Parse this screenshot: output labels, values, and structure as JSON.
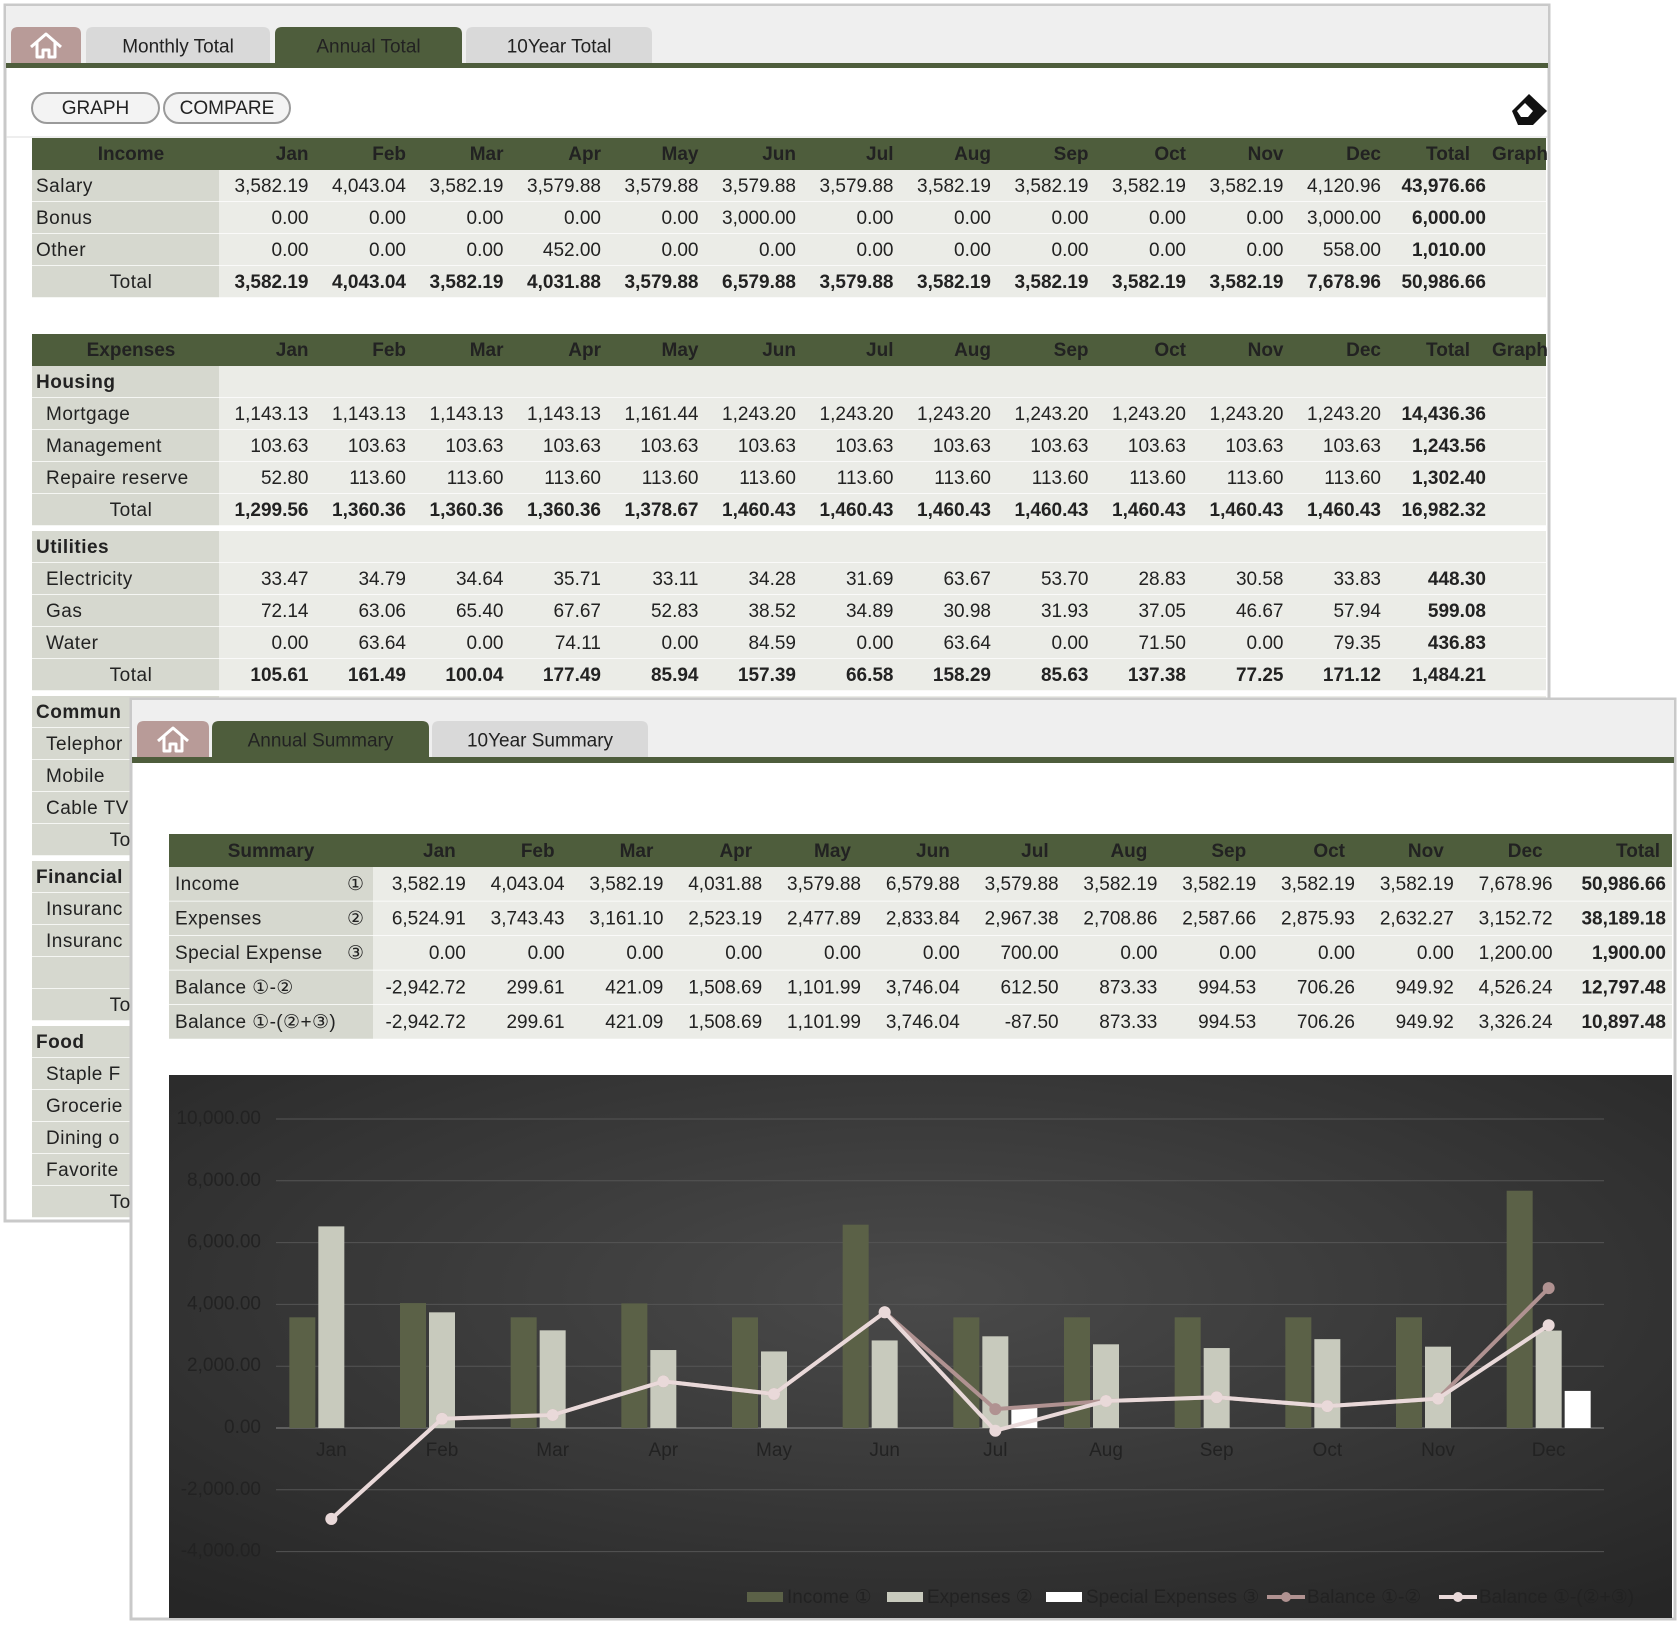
{
  "back_window": {
    "tabs": [
      "Monthly Total",
      "Annual Total",
      "10Year Total"
    ],
    "active_tab": 1,
    "buttons": [
      "GRAPH",
      "COMPARE"
    ],
    "income_table": {
      "columns": [
        "Income",
        "Jan",
        "Feb",
        "Mar",
        "Apr",
        "May",
        "Jun",
        "Jul",
        "Aug",
        "Sep",
        "Oct",
        "Nov",
        "Dec",
        "Total",
        "Graph"
      ],
      "rows": [
        [
          "Salary",
          "3,582.19",
          "4,043.04",
          "3,582.19",
          "3,579.88",
          "3,579.88",
          "3,579.88",
          "3,579.88",
          "3,582.19",
          "3,582.19",
          "3,582.19",
          "3,582.19",
          "4,120.96",
          "43,976.66"
        ],
        [
          "Bonus",
          "0.00",
          "0.00",
          "0.00",
          "0.00",
          "0.00",
          "3,000.00",
          "0.00",
          "0.00",
          "0.00",
          "0.00",
          "0.00",
          "3,000.00",
          "6,000.00"
        ],
        [
          "Other",
          "0.00",
          "0.00",
          "0.00",
          "452.00",
          "0.00",
          "0.00",
          "0.00",
          "0.00",
          "0.00",
          "0.00",
          "0.00",
          "558.00",
          "1,010.00"
        ]
      ],
      "total": [
        "Total",
        "3,582.19",
        "4,043.04",
        "3,582.19",
        "4,031.88",
        "3,579.88",
        "6,579.88",
        "3,579.88",
        "3,582.19",
        "3,582.19",
        "3,582.19",
        "3,582.19",
        "7,678.96",
        "50,986.66"
      ]
    },
    "expenses_table": {
      "columns": [
        "Expenses",
        "Jan",
        "Feb",
        "Mar",
        "Apr",
        "May",
        "Jun",
        "Jul",
        "Aug",
        "Sep",
        "Oct",
        "Nov",
        "Dec",
        "Total",
        "Graph"
      ],
      "sections": [
        {
          "name": "Housing",
          "rows": [
            [
              "Mortgage",
              "1,143.13",
              "1,143.13",
              "1,143.13",
              "1,143.13",
              "1,161.44",
              "1,243.20",
              "1,243.20",
              "1,243.20",
              "1,243.20",
              "1,243.20",
              "1,243.20",
              "1,243.20",
              "14,436.36"
            ],
            [
              "Management",
              "103.63",
              "103.63",
              "103.63",
              "103.63",
              "103.63",
              "103.63",
              "103.63",
              "103.63",
              "103.63",
              "103.63",
              "103.63",
              "103.63",
              "1,243.56"
            ],
            [
              "Repaire reserve",
              "52.80",
              "113.60",
              "113.60",
              "113.60",
              "113.60",
              "113.60",
              "113.60",
              "113.60",
              "113.60",
              "113.60",
              "113.60",
              "113.60",
              "1,302.40"
            ]
          ],
          "total": [
            "Total",
            "1,299.56",
            "1,360.36",
            "1,360.36",
            "1,360.36",
            "1,378.67",
            "1,460.43",
            "1,460.43",
            "1,460.43",
            "1,460.43",
            "1,460.43",
            "1,460.43",
            "1,460.43",
            "16,982.32"
          ]
        },
        {
          "name": "Utilities",
          "rows": [
            [
              "Electricity",
              "33.47",
              "34.79",
              "34.64",
              "35.71",
              "33.11",
              "34.28",
              "31.69",
              "63.67",
              "53.70",
              "28.83",
              "30.58",
              "33.83",
              "448.30"
            ],
            [
              "Gas",
              "72.14",
              "63.06",
              "65.40",
              "67.67",
              "52.83",
              "38.52",
              "34.89",
              "30.98",
              "31.93",
              "37.05",
              "46.67",
              "57.94",
              "599.08"
            ],
            [
              "Water",
              "0.00",
              "63.64",
              "0.00",
              "74.11",
              "0.00",
              "84.59",
              "0.00",
              "63.64",
              "0.00",
              "71.50",
              "0.00",
              "79.35",
              "436.83"
            ]
          ],
          "total": [
            "Total",
            "105.61",
            "161.49",
            "100.04",
            "177.49",
            "85.94",
            "157.39",
            "66.58",
            "158.29",
            "85.63",
            "137.38",
            "77.25",
            "171.12",
            "1,484.21"
          ]
        },
        {
          "name": "Commun",
          "rows": [
            [
              "Telephor"
            ],
            [
              "Mobile"
            ],
            [
              "Cable TV"
            ]
          ],
          "total": [
            "Total"
          ]
        },
        {
          "name": "Financial",
          "rows": [
            [
              "Insuranc"
            ],
            [
              "Insuranc"
            ],
            [
              null
            ]
          ],
          "total": [
            "Total"
          ]
        },
        {
          "name": "Food",
          "rows": [
            [
              "Staple F"
            ],
            [
              "Grocerie"
            ],
            [
              "Dining o"
            ],
            [
              "Favorite"
            ]
          ],
          "total": [
            "Total"
          ]
        }
      ]
    }
  },
  "front_window": {
    "tabs": [
      "Annual Summary",
      "10Year Summary"
    ],
    "active_tab": 0,
    "summary_table": {
      "columns": [
        "Summary",
        "Jan",
        "Feb",
        "Mar",
        "Apr",
        "May",
        "Jun",
        "Jul",
        "Aug",
        "Sep",
        "Oct",
        "Nov",
        "Dec",
        "Total"
      ],
      "rows": [
        {
          "label": "Income",
          "marker": "①",
          "values": [
            "3,582.19",
            "4,043.04",
            "3,582.19",
            "4,031.88",
            "3,579.88",
            "6,579.88",
            "3,579.88",
            "3,582.19",
            "3,582.19",
            "3,582.19",
            "3,582.19",
            "7,678.96",
            "50,986.66"
          ]
        },
        {
          "label": "Expenses",
          "marker": "②",
          "values": [
            "6,524.91",
            "3,743.43",
            "3,161.10",
            "2,523.19",
            "2,477.89",
            "2,833.84",
            "2,967.38",
            "2,708.86",
            "2,587.66",
            "2,875.93",
            "2,632.27",
            "3,152.72",
            "38,189.18"
          ]
        },
        {
          "label": "Special Expense",
          "marker": "③",
          "values": [
            "0.00",
            "0.00",
            "0.00",
            "0.00",
            "0.00",
            "0.00",
            "700.00",
            "0.00",
            "0.00",
            "0.00",
            "0.00",
            "1,200.00",
            "1,900.00"
          ]
        },
        {
          "label": "Balance ①-②",
          "values": [
            "-2,942.72",
            "299.61",
            "421.09",
            "1,508.69",
            "1,101.99",
            "3,746.04",
            "612.50",
            "873.33",
            "994.53",
            "706.26",
            "949.92",
            "4,526.24",
            "12,797.48"
          ]
        },
        {
          "label": "Balance ①-(②+③)",
          "values": [
            "-2,942.72",
            "299.61",
            "421.09",
            "1,508.69",
            "1,101.99",
            "3,746.04",
            "-87.50",
            "873.33",
            "994.53",
            "706.26",
            "949.92",
            "3,326.24",
            "10,897.48"
          ]
        }
      ]
    }
  },
  "chart_data": {
    "type": "combo",
    "categories": [
      "Jan",
      "Feb",
      "Mar",
      "Apr",
      "May",
      "Jun",
      "Jul",
      "Aug",
      "Sep",
      "Oct",
      "Nov",
      "Dec"
    ],
    "series": [
      {
        "name": "Income ①",
        "type": "bar",
        "color": "#5b6147",
        "values": [
          3582.19,
          4043.04,
          3582.19,
          4031.88,
          3579.88,
          6579.88,
          3579.88,
          3582.19,
          3582.19,
          3582.19,
          3582.19,
          7678.96
        ]
      },
      {
        "name": "Expenses ②",
        "type": "bar",
        "color": "#c8cabd",
        "values": [
          6524.91,
          3743.43,
          3161.1,
          2523.19,
          2477.89,
          2833.84,
          2967.38,
          2708.86,
          2587.66,
          2875.93,
          2632.27,
          3152.72
        ]
      },
      {
        "name": "Special Expenses ③",
        "type": "bar",
        "color": "#ffffff",
        "values": [
          0,
          0,
          0,
          0,
          0,
          0,
          700,
          0,
          0,
          0,
          0,
          1200
        ]
      },
      {
        "name": "Balance ①-②",
        "type": "line",
        "color": "#b09291",
        "values": [
          -2942.72,
          299.61,
          421.09,
          1508.69,
          1101.99,
          3746.04,
          612.5,
          873.33,
          994.53,
          706.26,
          949.92,
          4526.24
        ]
      },
      {
        "name": "Balance ①-(②+③)",
        "type": "line",
        "color": "#e9d9d9",
        "values": [
          -2942.72,
          299.61,
          421.09,
          1508.69,
          1101.99,
          3746.04,
          -87.5,
          873.33,
          994.53,
          706.26,
          949.92,
          3326.24
        ]
      }
    ],
    "ylim": [
      -4000,
      10000
    ],
    "yticks": [
      {
        "value": -4000,
        "label": "-4,000.00"
      },
      {
        "value": -2000,
        "label": "-2,000.00"
      },
      {
        "value": 0,
        "label": "0.00"
      },
      {
        "value": 2000,
        "label": "2,000.00"
      },
      {
        "value": 4000,
        "label": "4,000.00"
      },
      {
        "value": 6000,
        "label": "6,000.00"
      },
      {
        "value": 8000,
        "label": "8,000.00"
      },
      {
        "value": 10000,
        "label": "10,000.00"
      }
    ],
    "grid": true,
    "legend": "bottom"
  }
}
